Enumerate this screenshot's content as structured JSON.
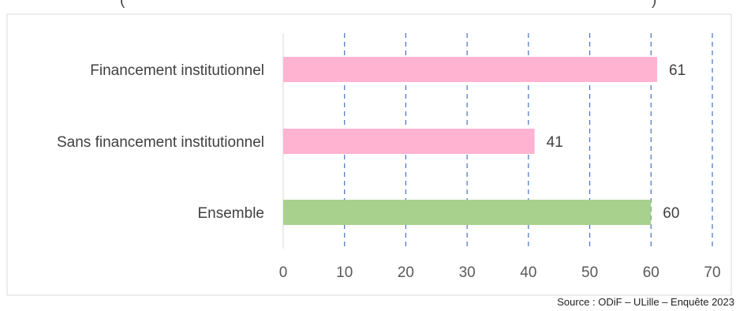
{
  "chart_data": {
    "type": "bar",
    "orientation": "horizontal",
    "title_fragment": "(",
    "title_fragment_end": ")",
    "categories": [
      "Financement institutionnel",
      "Sans financement institutionnel",
      "Ensemble"
    ],
    "values": [
      61,
      41,
      60
    ],
    "value_labels": [
      "61",
      "41",
      "60"
    ],
    "bar_colors": [
      "#ffb3d1",
      "#ffb3d1",
      "#a9d18e"
    ],
    "xlim": [
      0,
      70
    ],
    "x_ticks": [
      "0",
      "10",
      "20",
      "30",
      "40",
      "50",
      "60",
      "70"
    ],
    "grid": "vertical-dashed",
    "grid_color": "#4472c4",
    "legend": "none"
  },
  "source": "Source : ODiF – ULille – Enquête 2023"
}
